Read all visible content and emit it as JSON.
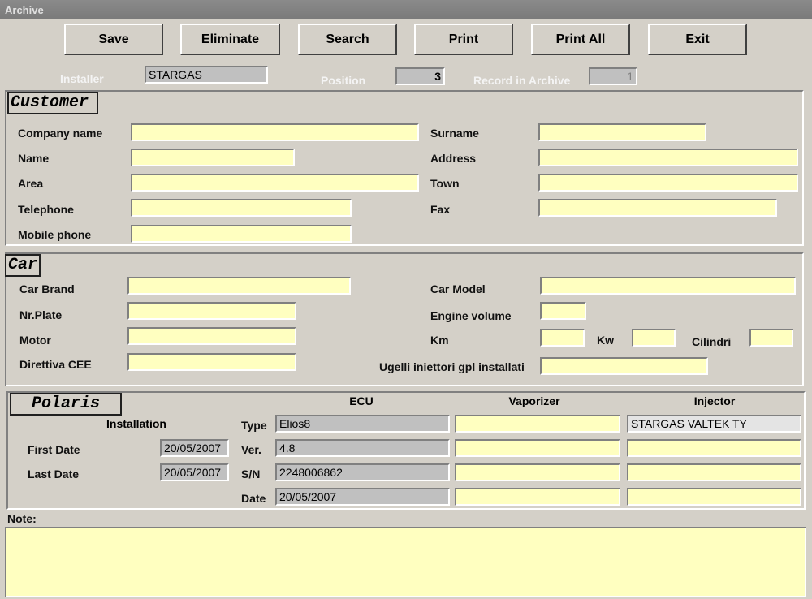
{
  "window": {
    "title": "Archive"
  },
  "toolbar": {
    "save": "Save",
    "eliminate": "Eliminate",
    "search": "Search",
    "print": "Print",
    "print_all": "Print All",
    "exit": "Exit"
  },
  "header": {
    "installer_label": "Installer",
    "installer_value": "STARGAS",
    "position_label": "Position",
    "position_value": "3",
    "record_label": "Record in Archive",
    "record_value": "1"
  },
  "customer": {
    "legend": "Customer",
    "company_name": "Company name",
    "surname": "Surname",
    "name": "Name",
    "address": "Address",
    "area": "Area",
    "town": "Town",
    "telephone": "Telephone",
    "fax": "Fax",
    "mobile_phone": "Mobile phone"
  },
  "car": {
    "legend": "Car",
    "car_brand": "Car Brand",
    "car_model": "Car Model",
    "nr_plate": "Nr.Plate",
    "engine_volume": "Engine volume",
    "motor": "Motor",
    "km": "Km",
    "kw": "Kw",
    "cilindri": "Cilindri",
    "direttiva": "Direttiva CEE",
    "ugelli": "Ugelli iniettori gpl installati"
  },
  "polaris": {
    "legend": "Polaris",
    "ecu": "ECU",
    "vaporizer": "Vaporizer",
    "injector": "Injector",
    "installation": "Installation",
    "first_date_label": "First Date",
    "first_date": "20/05/2007",
    "last_date_label": "Last Date",
    "last_date": "20/05/2007",
    "type_label": "Type",
    "ver_label": "Ver.",
    "sn_label": "S/N",
    "date_label": "Date",
    "ecu_type": "Elios8",
    "ecu_ver": "4.8",
    "ecu_sn": "2248006862",
    "ecu_date": "20/05/2007",
    "injector_type": "STARGAS VALTEK TY"
  },
  "note": {
    "label": "Note:"
  }
}
